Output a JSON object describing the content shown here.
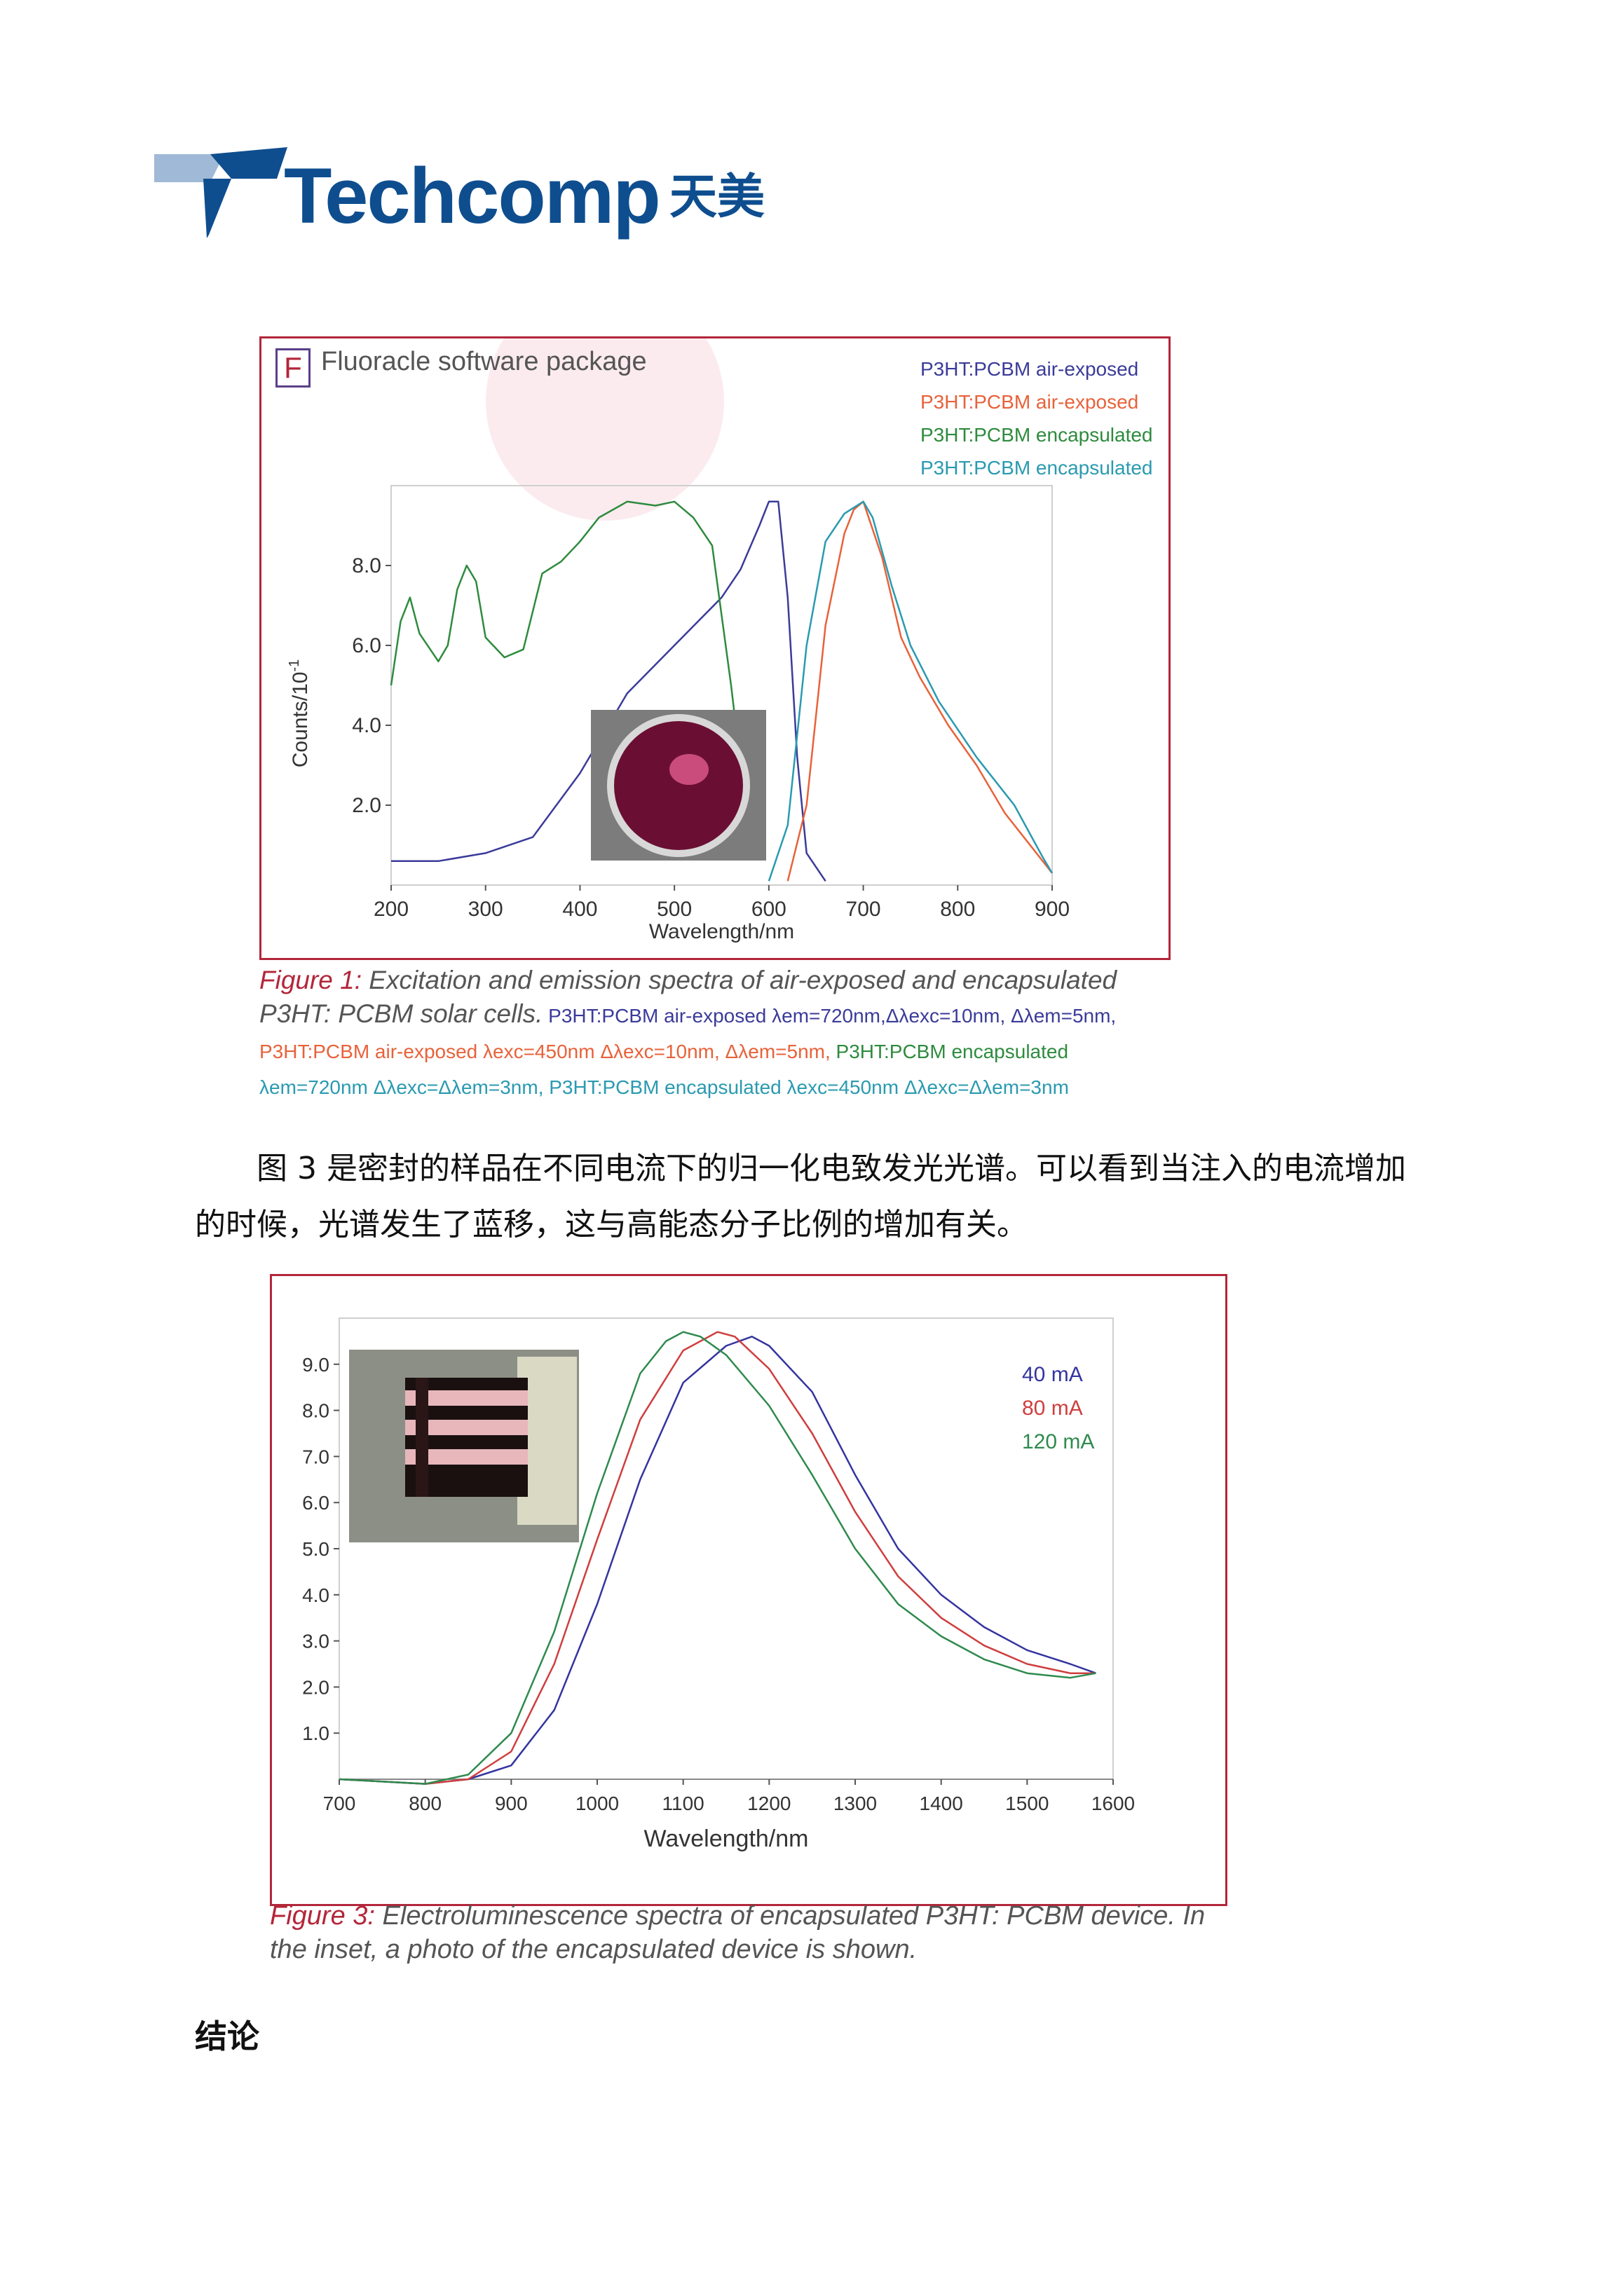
{
  "header": {
    "logo_text": "Techcomp",
    "logo_cn": "天美"
  },
  "figure1": {
    "badge": "F",
    "software": "Fluoracle software package",
    "legend": [
      {
        "label": "P3HT:PCBM air-exposed",
        "color": "#3b3b9a"
      },
      {
        "label": "P3HT:PCBM air-exposed",
        "color": "#e8623a"
      },
      {
        "label": "P3HT:PCBM encapsulated",
        "color": "#2e8b3e"
      },
      {
        "label": "P3HT:PCBM encapsulated",
        "color": "#2a9ab0"
      }
    ],
    "caption_label": "Figure 1:",
    "caption_main": " Excitation and emission spectra of air-exposed and encapsulated P3HT: PCBM solar cells.",
    "caption_l1": " P3HT:PCBM air-exposed λem=720nm,Δλexc=10nm, Δλem=5nm,",
    "caption_l2": "P3HT:PCBM air-exposed λexc=450nm Δλexc=10nm, Δλem=5nm,",
    "caption_l2b": " P3HT:PCBM encapsulated",
    "caption_l3": "λem=720nm Δλexc=Δλem=3nm, P3HT:PCBM encapsulated λexc=450nm Δλexc=Δλem=3nm"
  },
  "paragraph": "图 3 是密封的样品在不同电流下的归一化电致发光光谱。可以看到当注入的电流增加的时候，光谱发生了蓝移，这与高能态分子比例的增加有关。",
  "figure3": {
    "caption_label": "Figure 3:",
    "caption_text": " Electroluminescence spectra of encapsulated P3HT: PCBM device. In the inset, a photo of the encapsulated device is shown."
  },
  "section_heading": "结论",
  "chart_data": [
    {
      "type": "line",
      "xlabel": "Wavelength/nm",
      "ylabel": "Counts/10",
      "ylabel_superscript": "-1",
      "xlim": [
        200,
        900
      ],
      "ylim": [
        0,
        10
      ],
      "xticks": [
        "200",
        "300",
        "400",
        "500",
        "600",
        "700",
        "800",
        "900"
      ],
      "yticks": [
        "2.0",
        "4.0",
        "6.0",
        "8.0"
      ],
      "grid": false,
      "legend_position": "top-right",
      "series": [
        {
          "name": "P3HT:PCBM air-exposed",
          "color": "#3b3b9a",
          "x": [
            200,
            250,
            300,
            350,
            400,
            450,
            500,
            550,
            570,
            590,
            600,
            610,
            620,
            630,
            640,
            660
          ],
          "y": [
            0.6,
            0.6,
            0.8,
            1.2,
            2.8,
            4.8,
            6.0,
            7.2,
            7.9,
            9.0,
            9.6,
            9.6,
            7.2,
            3.2,
            0.8,
            0.1
          ]
        },
        {
          "name": "P3HT:PCBM air-exposed",
          "color": "#e8623a",
          "x": [
            620,
            640,
            660,
            680,
            690,
            700,
            720,
            740,
            760,
            790,
            820,
            850,
            880,
            900
          ],
          "y": [
            0.1,
            2.0,
            6.5,
            8.8,
            9.4,
            9.6,
            8.2,
            6.2,
            5.2,
            4.0,
            3.0,
            1.8,
            0.9,
            0.3
          ]
        },
        {
          "name": "P3HT:PCBM encapsulated",
          "color": "#2e8b3e",
          "x": [
            200,
            210,
            220,
            230,
            250,
            260,
            270,
            280,
            290,
            300,
            320,
            340,
            360,
            380,
            400,
            420,
            450,
            480,
            500,
            520,
            540,
            560,
            580
          ],
          "y": [
            5.0,
            6.6,
            7.2,
            6.3,
            5.6,
            6.0,
            7.4,
            8.0,
            7.6,
            6.2,
            5.7,
            5.9,
            7.8,
            8.1,
            8.6,
            9.2,
            9.6,
            9.5,
            9.6,
            9.2,
            8.5,
            5.0,
            1.0
          ]
        },
        {
          "name": "P3HT:PCBM encapsulated",
          "color": "#2a9ab0",
          "x": [
            600,
            620,
            640,
            660,
            680,
            700,
            710,
            730,
            750,
            780,
            820,
            860,
            890,
            900
          ],
          "y": [
            0.1,
            1.5,
            6.0,
            8.6,
            9.3,
            9.6,
            9.2,
            7.5,
            6.0,
            4.6,
            3.2,
            2.0,
            0.7,
            0.3
          ]
        }
      ]
    },
    {
      "type": "line",
      "xlabel": "Wavelength/nm",
      "ylabel": "",
      "xlim": [
        700,
        1600
      ],
      "ylim": [
        0,
        10
      ],
      "xticks": [
        "700",
        "800",
        "900",
        "1000",
        "1100",
        "1200",
        "1300",
        "1400",
        "1500",
        "1600"
      ],
      "yticks": [
        "1.0",
        "2.0",
        "3.0",
        "4.0",
        "5.0",
        "6.0",
        "7.0",
        "8.0",
        "9.0"
      ],
      "grid": false,
      "legend_position": "top-right",
      "series": [
        {
          "name": "40 mA",
          "color": "#3434a0",
          "x": [
            700,
            800,
            850,
            900,
            950,
            1000,
            1050,
            1100,
            1150,
            1180,
            1200,
            1250,
            1300,
            1350,
            1400,
            1450,
            1500,
            1550,
            1580
          ],
          "y": [
            0.0,
            -0.1,
            0.0,
            0.3,
            1.5,
            3.8,
            6.5,
            8.6,
            9.4,
            9.6,
            9.4,
            8.4,
            6.6,
            5.0,
            4.0,
            3.3,
            2.8,
            2.5,
            2.3
          ]
        },
        {
          "name": "80 mA",
          "color": "#cf3e3e",
          "x": [
            700,
            800,
            850,
            900,
            950,
            1000,
            1050,
            1100,
            1140,
            1160,
            1200,
            1250,
            1300,
            1350,
            1400,
            1450,
            1500,
            1550,
            1580
          ],
          "y": [
            0.0,
            -0.1,
            0.0,
            0.6,
            2.5,
            5.2,
            7.8,
            9.3,
            9.7,
            9.6,
            8.9,
            7.5,
            5.8,
            4.4,
            3.5,
            2.9,
            2.5,
            2.3,
            2.3
          ]
        },
        {
          "name": "120 mA",
          "color": "#2f8a4e",
          "x": [
            700,
            800,
            850,
            900,
            950,
            1000,
            1050,
            1080,
            1100,
            1120,
            1150,
            1200,
            1250,
            1300,
            1350,
            1400,
            1450,
            1500,
            1550,
            1580
          ],
          "y": [
            0.0,
            -0.1,
            0.1,
            1.0,
            3.2,
            6.2,
            8.8,
            9.5,
            9.7,
            9.6,
            9.2,
            8.1,
            6.6,
            5.0,
            3.8,
            3.1,
            2.6,
            2.3,
            2.2,
            2.3
          ]
        }
      ]
    }
  ]
}
